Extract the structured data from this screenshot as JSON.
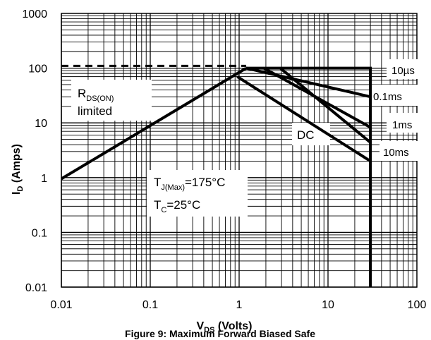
{
  "chart_data": {
    "type": "line",
    "scale": "log-log",
    "xlim": [
      0.01,
      100
    ],
    "ylim": [
      0.01,
      1000
    ],
    "grid": true,
    "x_ticks": [
      "0.01",
      "0.1",
      "1",
      "10",
      "100"
    ],
    "y_ticks": [
      "0.01",
      "0.1",
      "1",
      "10",
      "100",
      "1000"
    ],
    "ylabel": {
      "main": "I",
      "sub": "D",
      "rest": " (Amps)"
    },
    "xlabel": {
      "main": "V",
      "sub": "DS",
      "rest": " (Volts)"
    },
    "caption": "Figure 9: Maximum Forward Biased Safe",
    "series": [
      {
        "name": "RDS(ON) limited",
        "style": "solid",
        "points": [
          [
            0.01,
            0.95
          ],
          [
            1.2,
            100
          ]
        ]
      },
      {
        "name": "10µs",
        "style": "solid",
        "points": [
          [
            1.2,
            100
          ],
          [
            30,
            100
          ],
          [
            30,
            0.01
          ]
        ]
      },
      {
        "name": "0.1ms",
        "style": "solid",
        "points": [
          [
            1.2,
            100
          ],
          [
            30,
            30
          ]
        ]
      },
      {
        "name": "1ms",
        "style": "solid",
        "points": [
          [
            1.9,
            100
          ],
          [
            30,
            8.3
          ]
        ]
      },
      {
        "name": "10ms",
        "style": "solid",
        "points": [
          [
            2.9,
            100
          ],
          [
            30,
            4.4
          ]
        ]
      },
      {
        "name": "DC",
        "style": "solid",
        "points": [
          [
            0.95,
            70
          ],
          [
            30,
            2
          ]
        ]
      },
      {
        "name": "limit",
        "style": "dashed",
        "points": [
          [
            0.01,
            110
          ],
          [
            1.2,
            110
          ]
        ]
      }
    ],
    "annotations": {
      "rds_main": "R",
      "rds_sub": "DS(ON)",
      "rds_line2": "limited",
      "dc": "DC",
      "t10us": "10µs",
      "t01ms": "0.1ms",
      "t1ms": "1ms",
      "t10ms": "10ms",
      "tj_main": "T",
      "tj_sub": "J(Max)",
      "tj_rest": "=175°C",
      "tc_main": "T",
      "tc_sub": "C",
      "tc_rest": "=25°C"
    }
  }
}
